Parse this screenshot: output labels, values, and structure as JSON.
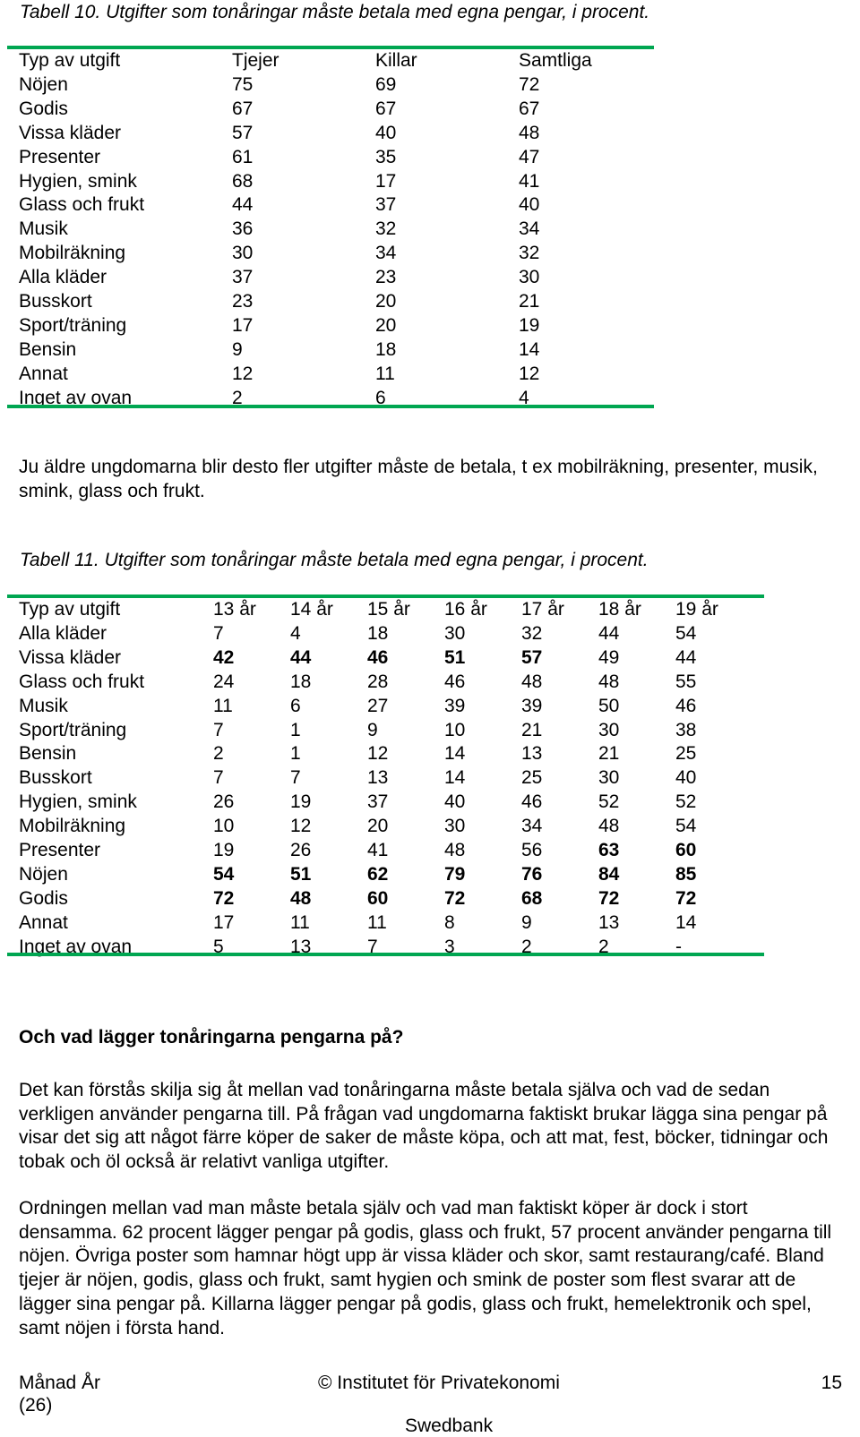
{
  "table10": {
    "caption": "Tabell 10. Utgifter som tonåringar måste betala med egna pengar, i procent.",
    "headers": [
      "Typ av utgift",
      "Tjejer",
      "Killar",
      "Samtliga"
    ],
    "rows": [
      {
        "label": "Nöjen",
        "values": [
          "75",
          "69",
          "72"
        ]
      },
      {
        "label": "Godis",
        "values": [
          "67",
          "67",
          "67"
        ]
      },
      {
        "label": "Vissa kläder",
        "values": [
          "57",
          "40",
          "48"
        ]
      },
      {
        "label": "Presenter",
        "values": [
          "61",
          "35",
          "47"
        ]
      },
      {
        "label": "Hygien, smink",
        "values": [
          "68",
          "17",
          "41"
        ]
      },
      {
        "label": "Glass och frukt",
        "values": [
          "44",
          "37",
          "40"
        ]
      },
      {
        "label": "Musik",
        "values": [
          "36",
          "32",
          "34"
        ]
      },
      {
        "label": "Mobilräkning",
        "values": [
          "30",
          "34",
          "32"
        ]
      },
      {
        "label": "Alla kläder",
        "values": [
          "37",
          "23",
          "30"
        ]
      },
      {
        "label": "Busskort",
        "values": [
          "23",
          "20",
          "21"
        ]
      },
      {
        "label": "Sport/träning",
        "values": [
          "17",
          "20",
          "19"
        ]
      },
      {
        "label": "Bensin",
        "values": [
          "9",
          "18",
          "14"
        ]
      },
      {
        "label": "Annat",
        "values": [
          "12",
          "11",
          "12"
        ]
      },
      {
        "label": "Inget av ovan",
        "values": [
          "2",
          "6",
          "4"
        ]
      }
    ]
  },
  "para1": "Ju äldre ungdomarna blir desto fler utgifter måste de betala, t ex mobilräkning, presenter, musik, smink, glass och frukt.",
  "table11": {
    "caption": "Tabell 11. Utgifter som tonåringar måste betala med egna pengar, i procent.",
    "headers": [
      "Typ av utgift",
      "13 år",
      "14 år",
      "15 år",
      "16 år",
      "17 år",
      "18 år",
      "19 år"
    ],
    "rows": [
      {
        "label": "Alla kläder",
        "values": [
          "7",
          "4",
          "18",
          "30",
          "32",
          "44",
          "54"
        ],
        "bold": []
      },
      {
        "label": "Vissa kläder",
        "values": [
          "42",
          "44",
          "46",
          "51",
          "57",
          "49",
          "44"
        ],
        "bold": [
          0,
          1,
          2,
          3,
          4
        ]
      },
      {
        "label": "Glass och frukt",
        "values": [
          "24",
          "18",
          "28",
          "46",
          "48",
          "48",
          "55"
        ],
        "bold": []
      },
      {
        "label": "Musik",
        "values": [
          "11",
          "6",
          "27",
          "39",
          "39",
          "50",
          "46"
        ],
        "bold": []
      },
      {
        "label": "Sport/träning",
        "values": [
          "7",
          "1",
          "9",
          "10",
          "21",
          "30",
          "38"
        ],
        "bold": []
      },
      {
        "label": "Bensin",
        "values": [
          "2",
          "1",
          "12",
          "14",
          "13",
          "21",
          "25"
        ],
        "bold": []
      },
      {
        "label": "Busskort",
        "values": [
          "7",
          "7",
          "13",
          "14",
          "25",
          "30",
          "40"
        ],
        "bold": []
      },
      {
        "label": "Hygien, smink",
        "values": [
          "26",
          "19",
          "37",
          "40",
          "46",
          "52",
          "52"
        ],
        "bold": []
      },
      {
        "label": "Mobilräkning",
        "values": [
          "10",
          "12",
          "20",
          "30",
          "34",
          "48",
          "54"
        ],
        "bold": []
      },
      {
        "label": "Presenter",
        "values": [
          "19",
          "26",
          "41",
          "48",
          "56",
          "63",
          "60"
        ],
        "bold": [
          5,
          6
        ]
      },
      {
        "label": "Nöjen",
        "values": [
          "54",
          "51",
          "62",
          "79",
          "76",
          "84",
          "85"
        ],
        "bold": [
          0,
          1,
          2,
          3,
          4,
          5,
          6
        ]
      },
      {
        "label": "Godis",
        "values": [
          "72",
          "48",
          "60",
          "72",
          "68",
          "72",
          "72"
        ],
        "bold": [
          0,
          1,
          2,
          3,
          4,
          5,
          6
        ]
      },
      {
        "label": "Annat",
        "values": [
          "17",
          "11",
          "11",
          "8",
          "9",
          "13",
          "14"
        ],
        "bold": []
      },
      {
        "label": "Inget av ovan",
        "values": [
          "5",
          "13",
          "7",
          "3",
          "2",
          "2",
          "-"
        ],
        "bold": []
      }
    ]
  },
  "heading": "Och vad lägger tonåringarna pengarna på?",
  "para2": "Det kan förstås skilja sig åt mellan vad tonåringarna måste betala själva och vad de sedan verkligen använder pengarna till. På frågan vad ungdomarna faktiskt brukar lägga sina pengar på visar det sig att något färre köper de saker de måste köpa, och att mat, fest, böcker, tidningar och tobak och öl också är relativt vanliga utgifter.",
  "para3": "Ordningen mellan vad man måste betala själv och vad man faktiskt köper är dock i stort densamma. 62 procent lägger pengar på godis, glass och frukt, 57 procent använder pengarna till nöjen. Övriga poster som hamnar högt upp är vissa kläder och skor, samt restaurang/café. Bland tjejer är nöjen, godis, glass och frukt, samt hygien och smink de poster som flest svarar att de lägger sina pengar på. Killarna lägger pengar på godis, glass och frukt, hemelektronik och spel, samt nöjen i första hand.",
  "footer": {
    "left_line1": "Månad År",
    "left_line2": "(26)",
    "center": "© Institutet för Privatekonomi",
    "center_line2": "Swedbank",
    "page": "15"
  },
  "colors": {
    "rule": "#00a651"
  }
}
